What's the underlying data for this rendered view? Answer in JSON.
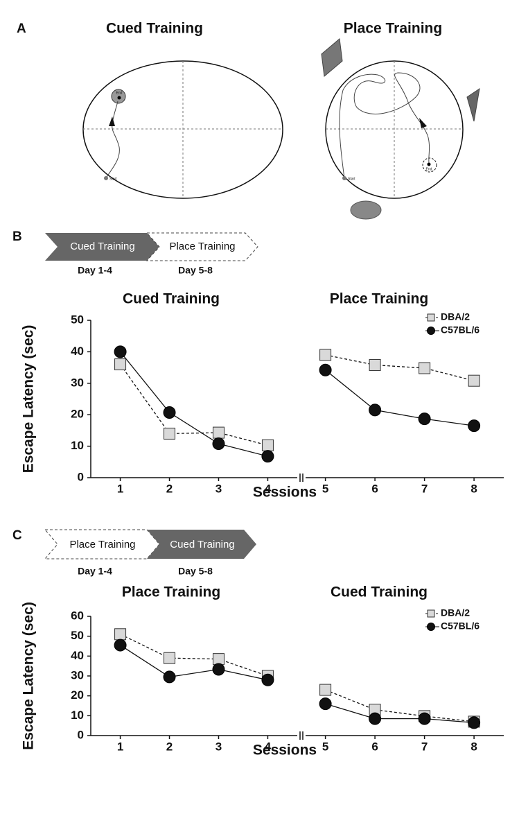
{
  "panel_labels": [
    "A",
    "B",
    "C"
  ],
  "panel_a": [
    {
      "title": "Cued Training",
      "start": "Start",
      "end": "End"
    },
    {
      "title": "Place Training",
      "start": "Start",
      "end": "End"
    }
  ],
  "protocols": [
    {
      "steps": [
        {
          "label": "Cued Training",
          "day": "Day 1-4"
        },
        {
          "label": "Place Training",
          "day": "Day 5-8"
        }
      ]
    },
    {
      "steps": [
        {
          "label": "Place Training",
          "day": "Day 1-4"
        },
        {
          "label": "Cued Training",
          "day": "Day 5-8"
        }
      ]
    }
  ],
  "chart_data": [
    {
      "type": "line",
      "title": "Cued Training",
      "ylabel": "Escape Latency (sec)",
      "x": [
        1,
        2,
        3,
        4
      ],
      "xticks": [
        1,
        2,
        3,
        4
      ],
      "xlim": [
        0.4,
        4.6
      ],
      "ylim": [
        0,
        50
      ],
      "yticks": [
        0,
        10,
        20,
        30,
        40,
        50
      ],
      "series": [
        {
          "color": "#d9d9d9",
          "marker": "square",
          "dashed": true,
          "values": [
            36,
            14,
            14.3,
            10.3
          ]
        },
        {
          "color": "#111111",
          "marker": "circle",
          "dashed": false,
          "values": [
            40,
            20.7,
            10.8,
            6.8
          ]
        }
      ]
    },
    {
      "type": "line",
      "title": "Place Training",
      "xlabel": "Sessions",
      "x": [
        5,
        6,
        7,
        8
      ],
      "xticks": [
        5,
        6,
        7,
        8
      ],
      "xlim": [
        4.6,
        8.6
      ],
      "ylim": [
        0,
        50
      ],
      "legend": "upper right",
      "series": [
        {
          "name": "DBA/2",
          "color": "#d9d9d9",
          "marker": "square",
          "dashed": true,
          "values": [
            39,
            35.8,
            34.8,
            30.8
          ]
        },
        {
          "name": "C57BL/6",
          "color": "#111111",
          "marker": "circle",
          "dashed": false,
          "values": [
            34.2,
            21.5,
            18.7,
            16.5
          ]
        }
      ]
    },
    {
      "type": "line",
      "title": "Place Training",
      "ylabel": "Escape Latency (sec)",
      "x": [
        1,
        2,
        3,
        4
      ],
      "xticks": [
        1,
        2,
        3,
        4
      ],
      "xlim": [
        0.4,
        4.6
      ],
      "ylim": [
        0,
        60
      ],
      "yticks": [
        0,
        10,
        20,
        30,
        40,
        50,
        60
      ],
      "series": [
        {
          "color": "#d9d9d9",
          "marker": "square",
          "dashed": true,
          "values": [
            51,
            39,
            38.5,
            30
          ]
        },
        {
          "color": "#111111",
          "marker": "circle",
          "dashed": false,
          "values": [
            45.5,
            29.5,
            33.3,
            28
          ]
        }
      ]
    },
    {
      "type": "line",
      "title": "Cued Training",
      "xlabel": "Sessions",
      "x": [
        5,
        6,
        7,
        8
      ],
      "xticks": [
        5,
        6,
        7,
        8
      ],
      "xlim": [
        4.6,
        8.6
      ],
      "ylim": [
        0,
        60
      ],
      "legend": "upper right",
      "series": [
        {
          "name": "DBA/2",
          "color": "#d9d9d9",
          "marker": "square",
          "dashed": true,
          "values": [
            23,
            13,
            9.8,
            7
          ]
        },
        {
          "name": "C57BL/6",
          "color": "#111111",
          "marker": "circle",
          "dashed": false,
          "values": [
            16,
            8.5,
            8.5,
            6.5
          ]
        }
      ]
    }
  ]
}
